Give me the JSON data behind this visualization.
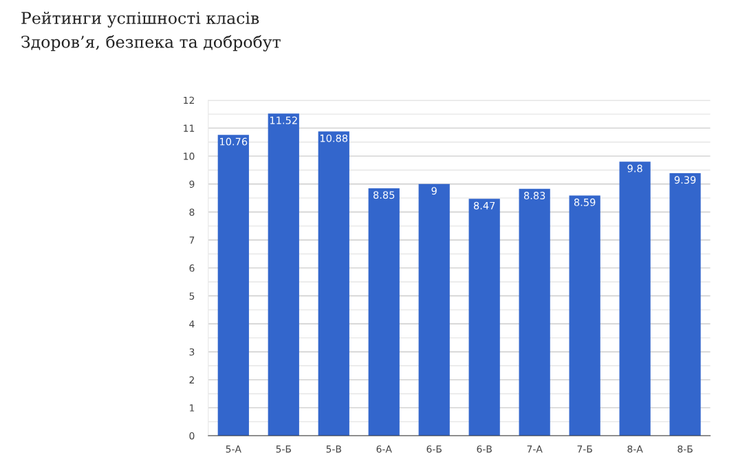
{
  "chart_data": {
    "type": "bar",
    "title": "Рейтинги успішності класів",
    "subtitle": "Здоров’я, безпека та добробут",
    "categories": [
      "5-А",
      "5-Б",
      "5-В",
      "6-А",
      "6-Б",
      "6-В",
      "7-А",
      "7-Б",
      "8-А",
      "8-Б"
    ],
    "values": [
      10.76,
      11.52,
      10.88,
      8.85,
      9,
      8.47,
      8.83,
      8.59,
      9.8,
      9.39
    ],
    "color": "#3366cc",
    "ylim": [
      0,
      12
    ],
    "yticks": [
      0,
      {
        "value": 0.5,
        "label": null
      },
      1,
      {
        "value": 1.5,
        "label": null
      },
      2,
      {
        "value": 2.5,
        "label": null
      },
      3,
      {
        "value": 3.5,
        "label": null
      },
      4,
      {
        "value": 4.5,
        "label": null
      },
      5,
      {
        "value": 5.5,
        "label": null
      },
      6,
      {
        "value": 6.5,
        "label": null
      },
      7,
      {
        "value": 7.5,
        "label": null
      },
      8,
      {
        "value": 8.5,
        "label": null
      },
      9,
      {
        "value": 9.5,
        "label": null
      },
      10,
      {
        "value": 10.5,
        "label": null
      },
      11,
      {
        "value": 11.5,
        "label": null
      },
      12
    ],
    "grid": "y",
    "data_labels": true
  }
}
